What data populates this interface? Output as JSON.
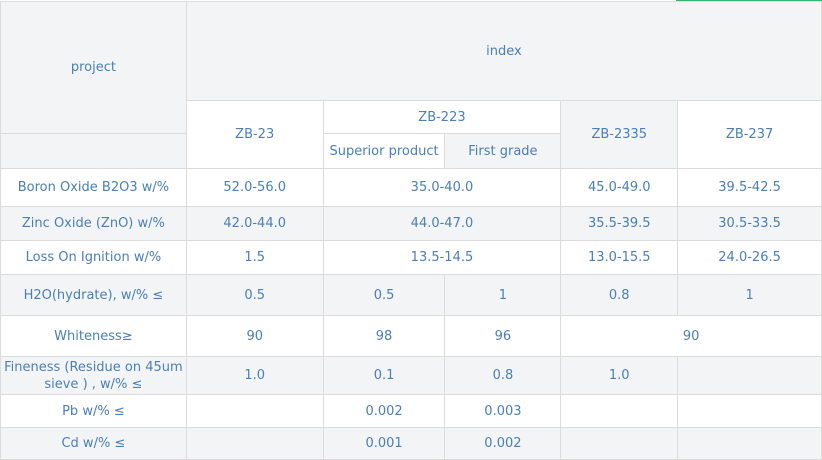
{
  "header": {
    "project": "project",
    "index": "index",
    "products": {
      "zb23": "ZB-23",
      "zb223": "ZB-223",
      "superior": "Superior product",
      "first_grade": "First grade",
      "zb2335": "ZB-2335",
      "zb237": "ZB-237"
    }
  },
  "rows": {
    "boron": {
      "label": "Boron Oxide B2O3 w/%",
      "zb23": "52.0-56.0",
      "zb223": "35.0-40.0",
      "zb2335": "45.0-49.0",
      "zb237": "39.5-42.5"
    },
    "zinc": {
      "label": "Zinc Oxide (ZnO) w/%",
      "zb23": "42.0-44.0",
      "zb223": "44.0-47.0",
      "zb2335": "35.5-39.5",
      "zb237": "30.5-33.5"
    },
    "loss": {
      "label": "Loss On Ignition w/%",
      "zb23": "1.5",
      "zb223": "13.5-14.5",
      "zb2335": "13.0-15.5",
      "zb237": "24.0-26.5"
    },
    "h2o": {
      "label": "H2O(hydrate), w/% ≤",
      "zb23": "0.5",
      "superior": "0.5",
      "first": "1",
      "zb2335": "0.8",
      "zb237": "1"
    },
    "whiteness": {
      "label": "Whiteness≥",
      "zb23": "90",
      "superior": "98",
      "first": "96",
      "rest": "90"
    },
    "fineness": {
      "label": "Fineness (Residue on 45um sieve ) , w/% ≤",
      "zb23": "1.0",
      "superior": "0.1",
      "first": "0.8",
      "zb2335": "1.0"
    },
    "pb": {
      "label": "Pb w/% ≤",
      "superior": "0.002",
      "first": "0.003"
    },
    "cd": {
      "label": "Cd w/% ≤",
      "superior": "0.001",
      "first": "0.002"
    }
  },
  "colors": {
    "text": "#4a7fb8",
    "border": "#dcdcdc",
    "shaded_row": "#f3f4f6",
    "accent": "#3cb371"
  }
}
